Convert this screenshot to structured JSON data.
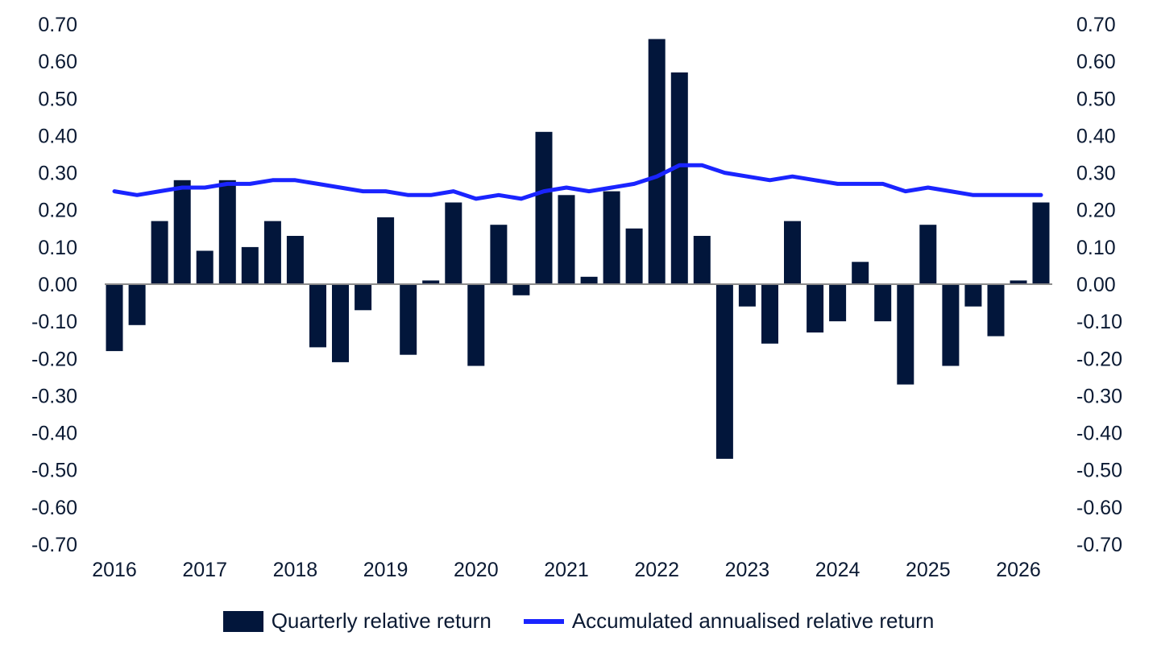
{
  "chart_data": {
    "type": "bar",
    "title": "",
    "xlabel": "",
    "ylabel": "",
    "ylim": [
      -0.7,
      0.7
    ],
    "y_ticks": [
      "0.70",
      "0.60",
      "0.50",
      "0.40",
      "0.30",
      "0.20",
      "0.10",
      "0.00",
      "-0.10",
      "-0.20",
      "-0.30",
      "-0.40",
      "-0.50",
      "-0.60",
      "-0.70"
    ],
    "x_tick_labels": [
      "2016",
      "2017",
      "2018",
      "2019",
      "2020",
      "2021",
      "2022",
      "2023",
      "2024",
      "2025",
      "2026"
    ],
    "secondary_axis": "right, same scale",
    "grid": false,
    "legend_position": "bottom",
    "colors": {
      "bars": "#02163b",
      "line": "#1a24ff",
      "text": "#0b1a33",
      "zero_line": "#8c8c8c"
    },
    "series": [
      {
        "name": "Quarterly relative return",
        "type": "bar",
        "values": [
          -0.18,
          -0.11,
          0.17,
          0.28,
          0.09,
          0.28,
          0.1,
          0.17,
          0.13,
          -0.17,
          -0.21,
          -0.07,
          0.18,
          -0.19,
          0.01,
          0.22,
          -0.22,
          0.16,
          -0.03,
          0.41,
          0.24,
          0.02,
          0.25,
          0.15,
          0.66,
          0.57,
          0.13,
          -0.47,
          -0.06,
          -0.16,
          0.17,
          -0.13,
          -0.1,
          0.06,
          -0.1,
          -0.27,
          0.16,
          -0.22,
          -0.06,
          -0.14,
          0.01,
          0.22
        ]
      },
      {
        "name": "Accumulated annualised relative return",
        "type": "line",
        "values": [
          0.25,
          0.24,
          0.25,
          0.26,
          0.26,
          0.27,
          0.27,
          0.28,
          0.28,
          0.27,
          0.26,
          0.25,
          0.25,
          0.24,
          0.24,
          0.25,
          0.23,
          0.24,
          0.23,
          0.25,
          0.26,
          0.25,
          0.26,
          0.27,
          0.29,
          0.32,
          0.32,
          0.3,
          0.29,
          0.28,
          0.29,
          0.28,
          0.27,
          0.27,
          0.27,
          0.25,
          0.26,
          0.25,
          0.24,
          0.24,
          0.24,
          0.24
        ]
      }
    ]
  },
  "legend": {
    "bar_label": "Quarterly relative return",
    "line_label": "Accumulated annualised relative return"
  }
}
